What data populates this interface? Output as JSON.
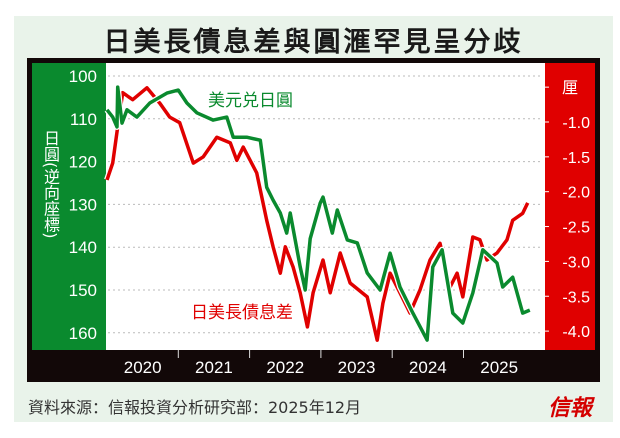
{
  "title": "日美長債息差與圓滙罕見呈分歧",
  "source": "資料來源：信報投資分析研究部：2025年12月",
  "logo": "信報",
  "colors": {
    "green": "#0a8a2e",
    "red": "#e00000",
    "frame": "#120808",
    "panel": "#e9f3ea"
  },
  "chart_data": {
    "type": "line",
    "title": "日美長債息差與圓滙罕見呈分歧",
    "x_ticks": [
      "2020",
      "2021",
      "2022",
      "2023",
      "2024",
      "2025"
    ],
    "xlim": [
      2020,
      2026
    ],
    "left_axis": {
      "label": "日圓(逆向座標)",
      "ticks": [
        "100",
        "110",
        "120",
        "130",
        "140",
        "150",
        "160"
      ],
      "ylim": [
        100,
        160
      ],
      "inverted": true
    },
    "right_axis": {
      "label": "厘",
      "ticks": [
        "-1.0",
        "-1.5",
        "-2.0",
        "-2.5",
        "-3.0",
        "-3.5",
        "-4.0"
      ],
      "ylim": [
        -0.5,
        -4.0
      ]
    },
    "grid": true,
    "series": [
      {
        "name": "美元兑日圓",
        "axis": "left",
        "color": "#0a8a2e",
        "x": [
          2020.0,
          2020.08,
          2020.14,
          2020.15,
          2020.21,
          2020.28,
          2020.42,
          2020.6,
          2020.84,
          2021.0,
          2021.12,
          2021.26,
          2021.49,
          2021.68,
          2021.77,
          2021.96,
          2022.15,
          2022.24,
          2022.33,
          2022.43,
          2022.52,
          2022.57,
          2022.71,
          2022.78,
          2022.85,
          2022.99,
          2023.03,
          2023.16,
          2023.23,
          2023.37,
          2023.51,
          2023.65,
          2023.83,
          2023.97,
          2024.11,
          2024.29,
          2024.49,
          2024.57,
          2024.7,
          2024.85,
          2024.99,
          2025.13,
          2025.27,
          2025.47,
          2025.55,
          2025.69,
          2025.83,
          2025.93
        ],
        "y": [
          107.9,
          109.6,
          111.9,
          102.6,
          111,
          107.9,
          109.6,
          106.3,
          104,
          103.3,
          106.3,
          108.6,
          110.3,
          109.6,
          114.3,
          114.3,
          115,
          126,
          129,
          132,
          136.7,
          132,
          144.6,
          150,
          138,
          129.7,
          128.3,
          136.7,
          131.3,
          138.3,
          139,
          146,
          150,
          141.4,
          149.3,
          155.4,
          161.7,
          144.6,
          140.6,
          155.4,
          157.7,
          150.7,
          140.6,
          143.7,
          149.3,
          147,
          155.4,
          154.7
        ]
      },
      {
        "name": "日美長債息差",
        "axis": "right",
        "color": "#e00000",
        "x": [
          2020.0,
          2020.08,
          2020.15,
          2020.22,
          2020.36,
          2020.56,
          2020.74,
          2020.88,
          2021.02,
          2021.21,
          2021.35,
          2021.54,
          2021.73,
          2021.82,
          2021.91,
          2022.1,
          2022.24,
          2022.33,
          2022.43,
          2022.5,
          2022.61,
          2022.71,
          2022.81,
          2022.89,
          2023.03,
          2023.13,
          2023.27,
          2023.41,
          2023.65,
          2023.79,
          2023.87,
          2023.97,
          2024.11,
          2024.25,
          2024.39,
          2024.53,
          2024.67,
          2024.81,
          2024.91,
          2024.99,
          2025.13,
          2025.23,
          2025.33,
          2025.47,
          2025.61,
          2025.69,
          2025.83,
          2025.9
        ],
        "y": [
          -1.83,
          -1.59,
          -1.07,
          -0.58,
          -0.68,
          -0.51,
          -0.73,
          -0.93,
          -1.01,
          -1.59,
          -1.5,
          -1.22,
          -1.3,
          -1.55,
          -1.36,
          -1.73,
          -2.41,
          -2.79,
          -3.17,
          -2.79,
          -3.08,
          -3.45,
          -3.94,
          -3.45,
          -2.98,
          -3.45,
          -2.88,
          -3.31,
          -3.51,
          -4.13,
          -3.6,
          -3.17,
          -3.45,
          -3.74,
          -3.41,
          -2.98,
          -2.74,
          -3.37,
          -3.17,
          -3.51,
          -2.65,
          -2.69,
          -2.98,
          -2.88,
          -2.69,
          -2.41,
          -2.31,
          -2.16
        ]
      }
    ]
  }
}
